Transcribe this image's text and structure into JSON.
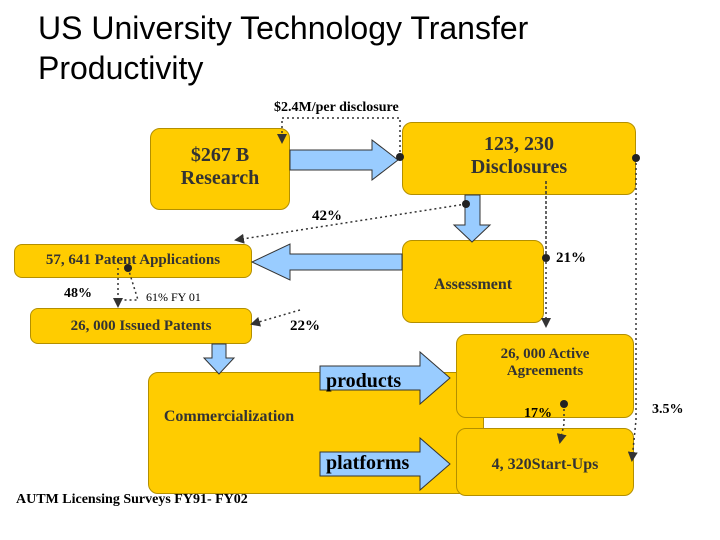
{
  "title": "US University Technology Transfer Productivity",
  "labels": {
    "per_disclosure": "$2.4M/per disclosure",
    "research": "$267 B Research",
    "disclosures": "123, 230 Disclosures",
    "pct_42": "42%",
    "patent_applications": "57, 641 Patent Applications",
    "pct_21": "21%",
    "assessment": "Assessment",
    "pct_48": "48%",
    "fy01": "61% FY 01",
    "issued_patents": "26, 000 Issued Patents",
    "pct_22": "22%",
    "active_agreements": "26, 000 Active Agreements",
    "products": "products",
    "commercialization": "Commercialization",
    "pct_17": "17%",
    "pct_3_5": "3.5%",
    "platforms": "platforms",
    "startups": "4, 320Start-Ups",
    "source": "AUTM Licensing Surveys FY91- FY02"
  },
  "colors": {
    "box_fill": "#FFCC00",
    "arrow_fill": "#99CCFF",
    "text_dark": "#333333"
  }
}
